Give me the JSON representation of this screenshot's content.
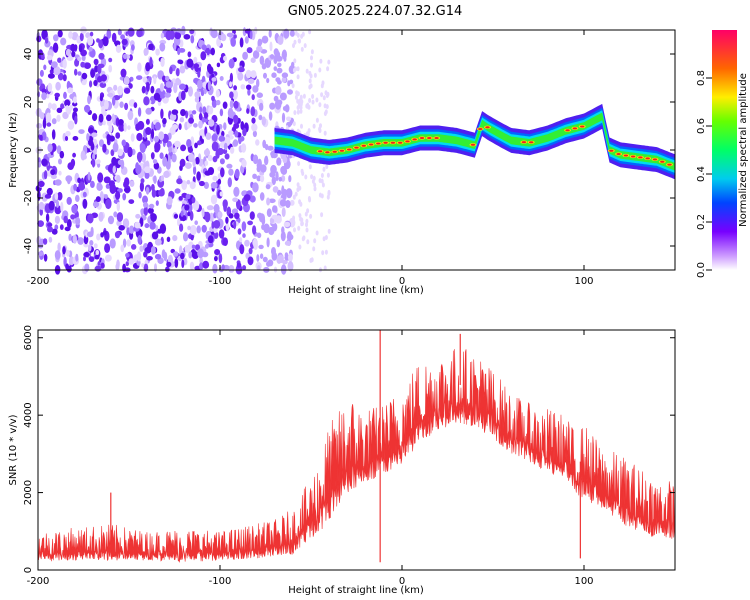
{
  "figure": {
    "title": "GN05.2025.224.07.32.G14"
  },
  "chart_data": [
    {
      "type": "heatmap",
      "xlabel": "Height of straight line (km)",
      "ylabel": "Frequency (Hz)",
      "xlim": [
        -200,
        150
      ],
      "ylim": [
        -50,
        50
      ],
      "x_ticks": [
        -200,
        -100,
        0,
        100
      ],
      "y_ticks": [
        -40,
        -20,
        0,
        20,
        40
      ],
      "colorbar": {
        "label": "Normalized spectral amplitude",
        "range": [
          0,
          1
        ],
        "ticks": [
          0.0,
          0.2,
          0.4,
          0.6,
          0.8
        ]
      },
      "noise_region": {
        "x_range": [
          -200,
          -60
        ],
        "y_range": [
          -50,
          50
        ]
      },
      "ridge": {
        "x": [
          -70,
          -60,
          -50,
          -40,
          -30,
          -20,
          -10,
          0,
          10,
          20,
          30,
          40,
          44,
          48,
          55,
          60,
          70,
          80,
          90,
          100,
          110,
          114,
          120,
          130,
          140,
          150
        ],
        "y": [
          4,
          3,
          0,
          -1,
          0,
          2,
          3,
          3,
          5,
          5,
          4,
          2,
          11,
          9,
          6,
          4,
          3,
          5,
          8,
          10,
          14,
          0,
          -2,
          -3,
          -4,
          -7
        ]
      }
    },
    {
      "type": "line",
      "xlabel": "Height of straight line (km)",
      "ylabel": "SNR (10 * v/v)",
      "xlim": [
        -200,
        150
      ],
      "ylim": [
        0,
        6200
      ],
      "x_ticks": [
        -200,
        -100,
        0,
        100
      ],
      "y_ticks": [
        0,
        2000,
        4000,
        6000
      ],
      "color": "#ee3333",
      "envelope": {
        "x": [
          -200,
          -180,
          -160,
          -140,
          -120,
          -100,
          -80,
          -70,
          -60,
          -55,
          -50,
          -45,
          -40,
          -35,
          -30,
          -20,
          -10,
          0,
          10,
          20,
          30,
          40,
          50,
          60,
          70,
          80,
          90,
          95,
          100,
          110,
          120,
          130,
          140,
          150
        ],
        "low": [
          200,
          250,
          250,
          250,
          200,
          250,
          300,
          350,
          400,
          600,
          800,
          1000,
          1200,
          1700,
          2000,
          2200,
          2500,
          2700,
          3300,
          3600,
          3800,
          3700,
          3400,
          3000,
          2800,
          2500,
          2400,
          2000,
          1800,
          1600,
          1200,
          1000,
          800,
          800
        ],
        "high": [
          1000,
          1100,
          1200,
          1000,
          1100,
          1000,
          1200,
          1300,
          1600,
          2000,
          2400,
          3000,
          3800,
          4100,
          4600,
          4200,
          4300,
          4800,
          5500,
          5600,
          5800,
          5700,
          5200,
          4600,
          4300,
          4200,
          4000,
          3600,
          3800,
          3200,
          3000,
          2700,
          2400,
          2300
        ]
      },
      "spikes": [
        {
          "x": -160,
          "y": 2000
        },
        {
          "x": -12,
          "y": 6200
        },
        {
          "x": 32,
          "y": 6100
        },
        {
          "x": -12,
          "y": 200
        },
        {
          "x": 98,
          "y": 300
        }
      ]
    }
  ]
}
